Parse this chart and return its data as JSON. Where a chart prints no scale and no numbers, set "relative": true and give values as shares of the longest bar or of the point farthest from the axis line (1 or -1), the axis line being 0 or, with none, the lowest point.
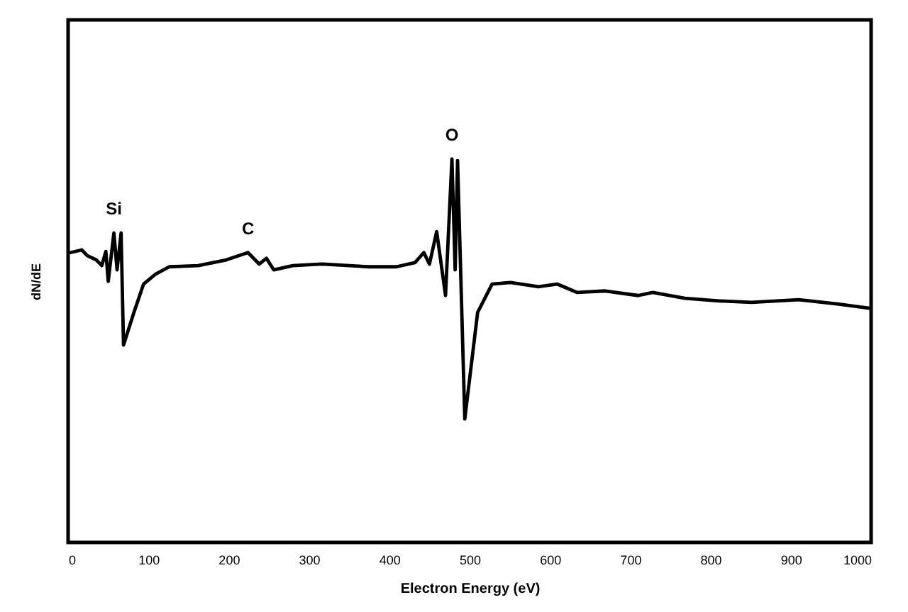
{
  "chart_data": {
    "type": "line",
    "xlabel": "Electron Energy (eV)",
    "ylabel": "dN/dE",
    "relative": true,
    "xlim": [
      0,
      1000
    ],
    "xticks": [
      0,
      100,
      200,
      300,
      400,
      500,
      600,
      700,
      800,
      900,
      1000
    ],
    "grid": false,
    "marker": "none",
    "line_style": "solid",
    "annotations": [
      {
        "text": "Si",
        "x": 57,
        "y": 0.807
      },
      {
        "text": "C",
        "x": 224,
        "y": 0.756
      },
      {
        "text": "O",
        "x": 478,
        "y": 1.0
      }
    ],
    "series": [
      {
        "color": "#000000",
        "x": [
          3,
          17,
          24,
          35,
          42,
          47,
          50,
          57,
          61,
          66,
          69,
          82,
          94,
          109,
          126,
          162,
          197,
          224,
          238,
          247,
          256,
          280,
          316,
          374,
          409,
          432,
          443,
          450,
          459,
          470,
          478,
          482,
          485,
          494,
          510,
          528,
          551,
          586,
          609,
          634,
          669,
          710,
          728,
          768,
          811,
          851,
          910,
          958,
          998
        ],
        "values": [
          0.756,
          0.763,
          0.748,
          0.737,
          0.722,
          0.759,
          0.681,
          0.807,
          0.711,
          0.807,
          0.515,
          0.6,
          0.674,
          0.7,
          0.719,
          0.722,
          0.737,
          0.756,
          0.726,
          0.741,
          0.711,
          0.722,
          0.726,
          0.719,
          0.719,
          0.73,
          0.756,
          0.726,
          0.811,
          0.644,
          1.0,
          0.711,
          0.996,
          0.322,
          0.6,
          0.674,
          0.678,
          0.667,
          0.674,
          0.652,
          0.656,
          0.644,
          0.652,
          0.637,
          0.63,
          0.626,
          0.633,
          0.622,
          0.611
        ]
      }
    ]
  }
}
